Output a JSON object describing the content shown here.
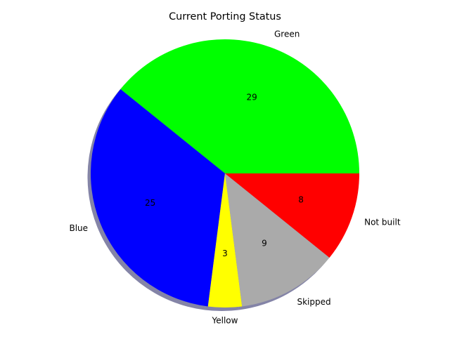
{
  "chart_data": {
    "type": "pie",
    "title": "Current Porting Status",
    "slices": [
      {
        "label": "Green",
        "value": 29,
        "color": "#00ff00"
      },
      {
        "label": "Blue",
        "value": 25,
        "color": "#0000ff"
      },
      {
        "label": "Yellow",
        "value": 3,
        "color": "#ffff00"
      },
      {
        "label": "Skipped",
        "value": 9,
        "color": "#aaaaaa"
      },
      {
        "label": "Not built",
        "value": 8,
        "color": "#ff0000"
      }
    ],
    "value_labels": "absolute",
    "start_angle_deg": 0,
    "direction": "counterclockwise",
    "shadow": true,
    "legend": "none"
  }
}
